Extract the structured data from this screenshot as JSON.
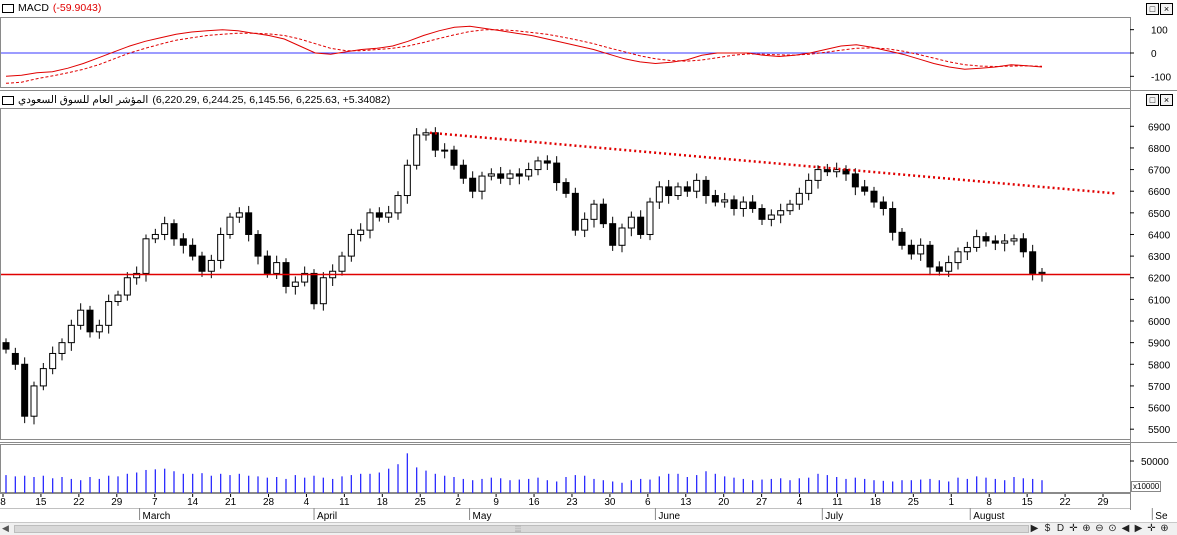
{
  "panes": {
    "macd": {
      "title": "MACD",
      "value": "(-59.9043)",
      "ticks": [
        "100",
        "0",
        "-100"
      ]
    },
    "price": {
      "title": "المؤشر العام للسوق السعودي",
      "ohlc": "(6,220.29, 6,244.25, 6,145.56, 6,225.63, +5.34082)",
      "ticks": [
        "6900",
        "6800",
        "6700",
        "6600",
        "6500",
        "6400",
        "6300",
        "6200",
        "6100",
        "6000",
        "5900",
        "5800",
        "5700",
        "5600",
        "5500"
      ]
    },
    "volume": {
      "tick": "50000",
      "scale": "x10000"
    }
  },
  "window_buttons": {
    "minimize": "_",
    "restore": "□",
    "close": "×"
  },
  "date_axis": {
    "days": [
      "8",
      "15",
      "22",
      "29",
      "7",
      "14",
      "21",
      "28",
      "4",
      "11",
      "18",
      "25",
      "2",
      "9",
      "16",
      "23",
      "30",
      "6",
      "13",
      "20",
      "27",
      "4",
      "11",
      "18",
      "25",
      "1",
      "8",
      "15",
      "22",
      "29"
    ],
    "months": [
      "March",
      "April",
      "May",
      "June",
      "July",
      "August",
      "Se"
    ]
  },
  "toolbar": {
    "items": [
      "$",
      "D",
      "✛",
      "⊕",
      "⊖",
      "⊙",
      "◀",
      "▶",
      "✛",
      "⊕"
    ]
  },
  "chart_data": [
    {
      "type": "line",
      "title": "MACD",
      "ylim": [
        -150,
        150
      ],
      "reference_line": 0,
      "series": [
        {
          "name": "MACD",
          "style": "solid",
          "color": "#e00000",
          "values": [
            -100,
            -95,
            -85,
            -80,
            -65,
            -45,
            -20,
            5,
            30,
            50,
            65,
            80,
            90,
            95,
            100,
            95,
            85,
            75,
            60,
            30,
            0,
            -5,
            5,
            15,
            20,
            30,
            50,
            75,
            95,
            110,
            115,
            105,
            95,
            85,
            75,
            60,
            45,
            30,
            15,
            -5,
            -25,
            -38,
            -45,
            -40,
            -30,
            -10,
            0,
            0,
            0,
            -10,
            -15,
            -10,
            0,
            15,
            30,
            35,
            25,
            10,
            -5,
            -25,
            -45,
            -60,
            -70,
            -65,
            -60,
            -50,
            -55,
            -60
          ]
        },
        {
          "name": "Signal",
          "style": "dashed",
          "color": "#e00000",
          "values": [
            -130,
            -125,
            -110,
            -98,
            -85,
            -70,
            -50,
            -25,
            0,
            20,
            38,
            55,
            65,
            75,
            80,
            85,
            85,
            82,
            75,
            60,
            40,
            20,
            10,
            10,
            15,
            20,
            30,
            45,
            62,
            78,
            92,
            100,
            100,
            95,
            88,
            80,
            68,
            55,
            40,
            22,
            5,
            -12,
            -25,
            -32,
            -35,
            -30,
            -20,
            -10,
            -4,
            -5,
            -8,
            -9,
            -5,
            3,
            12,
            20,
            22,
            18,
            8,
            -6,
            -22,
            -38,
            -50,
            -56,
            -58,
            -56,
            -55,
            -57
          ]
        }
      ]
    },
    {
      "type": "candlestick",
      "title": "المؤشر العام للسوق السعودي",
      "ylim": [
        5450,
        6980
      ],
      "reference_lines": [
        {
          "value": 6215,
          "color": "#e00000",
          "style": "solid"
        }
      ],
      "trendline": {
        "color": "#e00000",
        "style": "dotted",
        "from": [
          0,
          6870
        ],
        "to": [
          1,
          6590
        ]
      },
      "open": [
        5900,
        5850,
        5800,
        5560,
        5700,
        5780,
        5850,
        5900,
        5980,
        6050,
        5950,
        5980,
        6090,
        6120,
        6200,
        6220,
        6380,
        6400,
        6450,
        6380,
        6350,
        6300,
        6230,
        6280,
        6400,
        6480,
        6500,
        6400,
        6300,
        6220,
        6270,
        6160,
        6180,
        6220,
        6080,
        6200,
        6230,
        6300,
        6400,
        6420,
        6500,
        6480,
        6500,
        6580,
        6720,
        6860,
        6870,
        6790,
        6790,
        6720,
        6660,
        6600,
        6670,
        6680,
        6660,
        6680,
        6670,
        6700,
        6740,
        6730,
        6640,
        6590,
        6420,
        6470,
        6540,
        6450,
        6350,
        6430,
        6480,
        6400,
        6550,
        6620,
        6580,
        6620,
        6600,
        6650,
        6580,
        6550,
        6560,
        6520,
        6550,
        6520,
        6470,
        6490,
        6510,
        6540,
        6590,
        6650,
        6700,
        6690,
        6700,
        6680,
        6620,
        6600,
        6550,
        6520,
        6410,
        6350,
        6310,
        6350,
        6250,
        6230,
        6270,
        6320,
        6340,
        6390,
        6370,
        6360,
        6370,
        6380,
        6320,
        6220
      ],
      "close": [
        5870,
        5800,
        5560,
        5700,
        5780,
        5850,
        5900,
        5980,
        6050,
        5950,
        5980,
        6090,
        6120,
        6200,
        6220,
        6380,
        6400,
        6450,
        6380,
        6350,
        6300,
        6230,
        6280,
        6400,
        6480,
        6500,
        6400,
        6300,
        6220,
        6270,
        6160,
        6180,
        6220,
        6080,
        6200,
        6230,
        6300,
        6400,
        6420,
        6500,
        6480,
        6500,
        6580,
        6720,
        6860,
        6870,
        6790,
        6790,
        6720,
        6660,
        6600,
        6670,
        6680,
        6660,
        6680,
        6670,
        6700,
        6740,
        6730,
        6640,
        6590,
        6420,
        6470,
        6540,
        6450,
        6350,
        6430,
        6480,
        6400,
        6550,
        6620,
        6580,
        6620,
        6600,
        6650,
        6580,
        6550,
        6560,
        6520,
        6550,
        6520,
        6470,
        6490,
        6510,
        6540,
        6590,
        6650,
        6700,
        6690,
        6700,
        6680,
        6620,
        6600,
        6550,
        6520,
        6410,
        6350,
        6310,
        6350,
        6250,
        6230,
        6270,
        6320,
        6340,
        6390,
        6370,
        6360,
        6370,
        6380,
        6320,
        6220,
        6225
      ]
    },
    {
      "type": "bar",
      "title": "Volume",
      "ylim": [
        0,
        75000
      ],
      "values": [
        28000,
        26000,
        27000,
        25000,
        27000,
        23000,
        25000,
        22000,
        20000,
        25000,
        22000,
        27000,
        26000,
        30000,
        32000,
        36000,
        37000,
        38000,
        34000,
        30000,
        30000,
        31000,
        27000,
        30000,
        28000,
        30000,
        27000,
        26000,
        24000,
        25000,
        22000,
        28000,
        24000,
        27000,
        24000,
        22000,
        26000,
        28000,
        30000,
        30000,
        32000,
        38000,
        45000,
        62000,
        40000,
        35000,
        30000,
        27000,
        25000,
        22000,
        20000,
        22000,
        24000,
        23000,
        20000,
        21000,
        22000,
        24000,
        20000,
        18000,
        25000,
        28000,
        27000,
        22000,
        20000,
        18000,
        16000,
        20000,
        22000,
        21000,
        26000,
        30000,
        30000,
        25000,
        28000,
        34000,
        30000,
        26000,
        24000,
        22000,
        20000,
        21000,
        22000,
        23000,
        20000,
        23000,
        24000,
        30000,
        28000,
        25000,
        22000,
        24000,
        22000,
        20000,
        19000,
        18000,
        20000,
        20000,
        21000,
        22000,
        20000,
        18000,
        24000,
        22000,
        26000,
        24000,
        22000,
        20000,
        25000,
        23000,
        22000,
        20000
      ]
    }
  ]
}
